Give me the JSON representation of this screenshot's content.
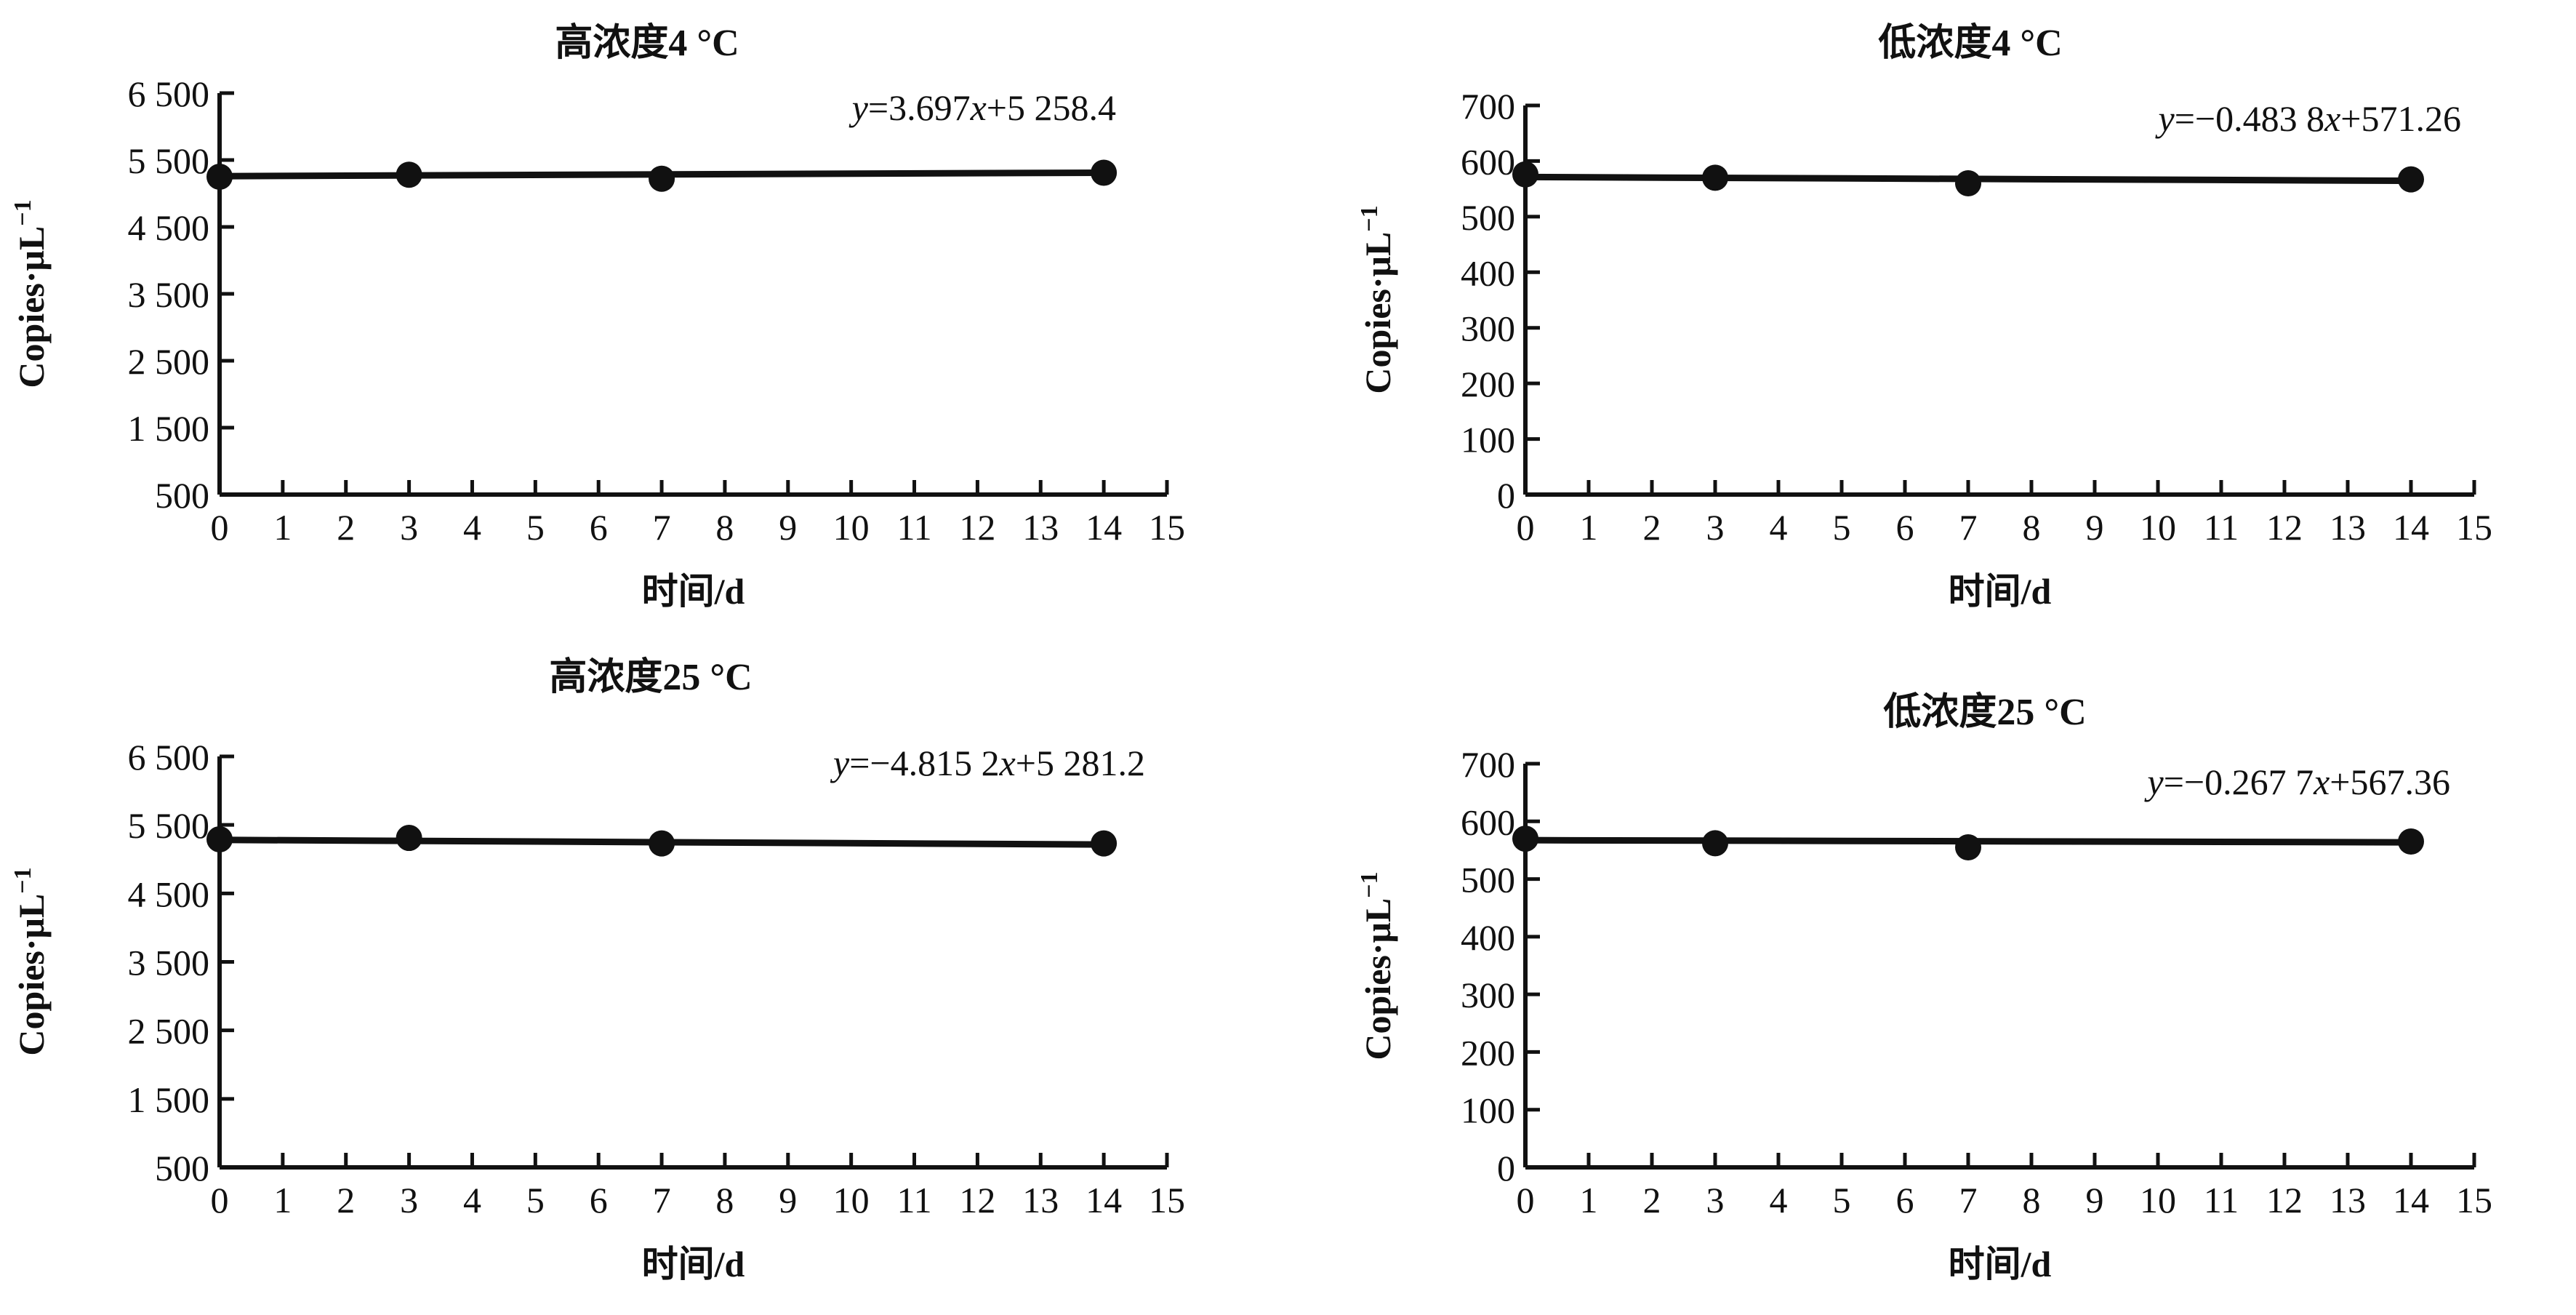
{
  "chart_data": [
    {
      "type": "line",
      "title": "高浓度4 °C",
      "xlabel": "时间/d",
      "ylabel": "Copies·μL",
      "ylabel_sup": "−1",
      "equation": {
        "y": "y",
        "eq": "=3.697",
        "x": "x",
        "rest": "+5 258.4"
      },
      "xlim": [
        0,
        15
      ],
      "ylim": [
        500,
        6500
      ],
      "xticks": [
        "0",
        "1",
        "2",
        "3",
        "4",
        "5",
        "6",
        "7",
        "8",
        "9",
        "10",
        "11",
        "12",
        "13",
        "14",
        "15"
      ],
      "yticks": [
        {
          "value": 500,
          "label": "500"
        },
        {
          "value": 1500,
          "label": "1 500"
        },
        {
          "value": 2500,
          "label": "2 500"
        },
        {
          "value": 3500,
          "label": "3 500"
        },
        {
          "value": 4500,
          "label": "4 500"
        },
        {
          "value": 5500,
          "label": "5 500"
        },
        {
          "value": 6500,
          "label": "6 500"
        }
      ],
      "series": [
        {
          "x": [
            0,
            3,
            7,
            14
          ],
          "y": [
            5250,
            5280,
            5220,
            5310
          ]
        }
      ],
      "trendline": [
        5258.4,
        5310.2
      ],
      "grid": false,
      "color": "#111111"
    },
    {
      "type": "line",
      "title": "低浓度4 °C",
      "xlabel": "时间/d",
      "ylabel": "Copies·μL",
      "ylabel_sup": "−1",
      "equation": {
        "y": "y",
        "eq": "=−0.483 8",
        "x": "x",
        "rest": "+571.26"
      },
      "xlim": [
        0,
        15
      ],
      "ylim": [
        0,
        700
      ],
      "xticks": [
        "0",
        "1",
        "2",
        "3",
        "4",
        "5",
        "6",
        "7",
        "8",
        "9",
        "10",
        "11",
        "12",
        "13",
        "14",
        "15"
      ],
      "yticks": [
        {
          "value": 0,
          "label": "0"
        },
        {
          "value": 100,
          "label": "100"
        },
        {
          "value": 200,
          "label": "200"
        },
        {
          "value": 300,
          "label": "300"
        },
        {
          "value": 400,
          "label": "400"
        },
        {
          "value": 500,
          "label": "500"
        },
        {
          "value": 600,
          "label": "600"
        },
        {
          "value": 700,
          "label": "700"
        }
      ],
      "series": [
        {
          "x": [
            0,
            3,
            7,
            14
          ],
          "y": [
            576,
            570,
            560,
            567
          ]
        }
      ],
      "trendline": [
        571.26,
        564.49
      ],
      "grid": false,
      "color": "#111111"
    },
    {
      "type": "line",
      "title": "高浓度25 °C",
      "xlabel": "时间/d",
      "ylabel": "Copies·μL",
      "ylabel_sup": "−1",
      "equation": {
        "y": "y",
        "eq": "=−4.815 2",
        "x": "x",
        "rest": "+5 281.2"
      },
      "xlim": [
        0,
        15
      ],
      "ylim": [
        500,
        6500
      ],
      "xticks": [
        "0",
        "1",
        "2",
        "3",
        "4",
        "5",
        "6",
        "7",
        "8",
        "9",
        "10",
        "11",
        "12",
        "13",
        "14",
        "15"
      ],
      "yticks": [
        {
          "value": 500,
          "label": "500"
        },
        {
          "value": 1500,
          "label": "1 500"
        },
        {
          "value": 2500,
          "label": "2 500"
        },
        {
          "value": 3500,
          "label": "3 500"
        },
        {
          "value": 4500,
          "label": "4 500"
        },
        {
          "value": 5500,
          "label": "5 500"
        },
        {
          "value": 6500,
          "label": "6 500"
        }
      ],
      "series": [
        {
          "x": [
            0,
            3,
            7,
            14
          ],
          "y": [
            5290,
            5310,
            5230,
            5230
          ]
        }
      ],
      "trendline": [
        5281.2,
        5213.8
      ],
      "grid": false,
      "color": "#111111"
    },
    {
      "type": "line",
      "title": "低浓度25 °C",
      "xlabel": "时间/d",
      "ylabel": "Copies·μL",
      "ylabel_sup": "−1",
      "equation": {
        "y": "y",
        "eq": "=−0.267 7",
        "x": "x",
        "rest": "+567.36"
      },
      "xlim": [
        0,
        15
      ],
      "ylim": [
        0,
        700
      ],
      "xticks": [
        "0",
        "1",
        "2",
        "3",
        "4",
        "5",
        "6",
        "7",
        "8",
        "9",
        "10",
        "11",
        "12",
        "13",
        "14",
        "15"
      ],
      "yticks": [
        {
          "value": 0,
          "label": "0"
        },
        {
          "value": 100,
          "label": "100"
        },
        {
          "value": 200,
          "label": "200"
        },
        {
          "value": 300,
          "label": "300"
        },
        {
          "value": 400,
          "label": "400"
        },
        {
          "value": 500,
          "label": "500"
        },
        {
          "value": 600,
          "label": "600"
        },
        {
          "value": 700,
          "label": "700"
        }
      ],
      "series": [
        {
          "x": [
            0,
            3,
            7,
            14
          ],
          "y": [
            570,
            562,
            555,
            565
          ]
        }
      ],
      "trendline": [
        567.36,
        563.61
      ],
      "grid": false,
      "color": "#111111"
    }
  ]
}
